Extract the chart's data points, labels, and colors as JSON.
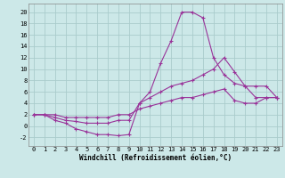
{
  "background_color": "#cce8e8",
  "grid_color": "#aacccc",
  "line_color": "#993399",
  "marker": "+",
  "xlabel": "Windchill (Refroidissement éolien,°C)",
  "xlabel_fontsize": 5.5,
  "tick_fontsize": 5,
  "xlim": [
    -0.5,
    23.5
  ],
  "ylim": [
    -3.5,
    21.5
  ],
  "yticks": [
    -2,
    0,
    2,
    4,
    6,
    8,
    10,
    12,
    14,
    16,
    18,
    20
  ],
  "xticks": [
    0,
    1,
    2,
    3,
    4,
    5,
    6,
    7,
    8,
    9,
    10,
    11,
    12,
    13,
    14,
    15,
    16,
    17,
    18,
    19,
    20,
    21,
    22,
    23
  ],
  "curves": [
    {
      "x": [
        0,
        1,
        2,
        3,
        4,
        5,
        6,
        7,
        8,
        9,
        10,
        11,
        12,
        13,
        14,
        15,
        16,
        17,
        18,
        19,
        20,
        21,
        22,
        23
      ],
      "y": [
        2,
        2,
        1,
        0.5,
        -0.5,
        -1,
        -1.5,
        -1.5,
        -1.7,
        -1.5,
        4,
        6,
        11,
        15,
        20,
        20,
        19,
        12,
        9,
        7.5,
        7,
        5,
        5,
        5
      ]
    },
    {
      "x": [
        0,
        1,
        2,
        3,
        4,
        5,
        6,
        7,
        8,
        9,
        10,
        11,
        12,
        13,
        14,
        15,
        16,
        17,
        18,
        19,
        20,
        21,
        22,
        23
      ],
      "y": [
        2,
        2,
        1.5,
        1,
        0.8,
        0.5,
        0.5,
        0.5,
        1,
        1,
        4,
        5,
        6,
        7,
        7.5,
        8,
        9,
        10,
        12,
        9.5,
        7,
        7,
        7,
        5
      ]
    },
    {
      "x": [
        0,
        1,
        2,
        3,
        4,
        5,
        6,
        7,
        8,
        9,
        10,
        11,
        12,
        13,
        14,
        15,
        16,
        17,
        18,
        19,
        20,
        21,
        22,
        23
      ],
      "y": [
        2,
        2,
        2,
        1.5,
        1.5,
        1.5,
        1.5,
        1.5,
        2,
        2,
        3,
        3.5,
        4,
        4.5,
        5,
        5,
        5.5,
        6,
        6.5,
        4.5,
        4,
        4,
        5,
        5
      ]
    }
  ]
}
